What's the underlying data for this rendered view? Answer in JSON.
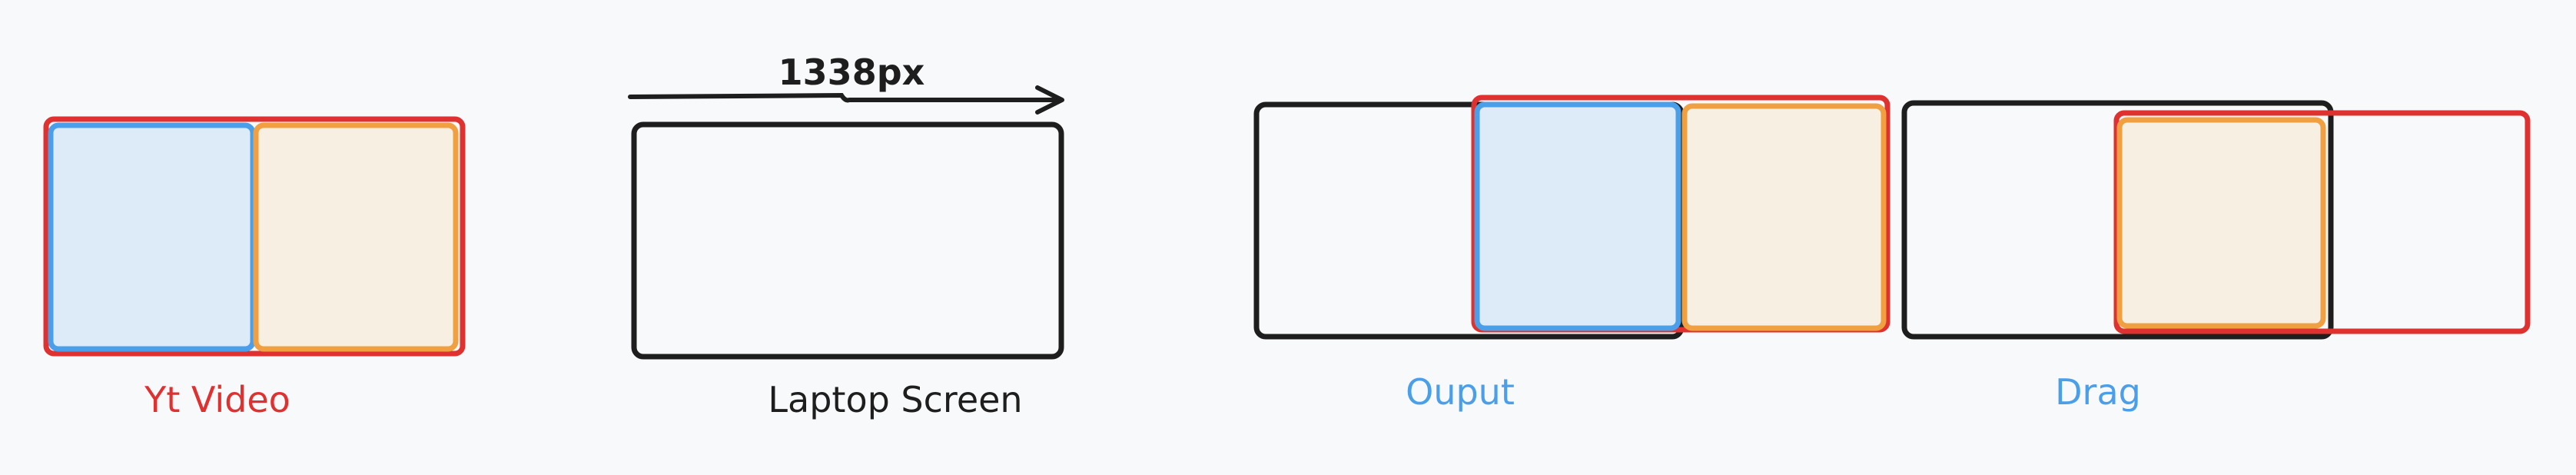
{
  "colors": {
    "background": "#f8f9fa",
    "red": "#e03131",
    "blue": "#4a9fe8",
    "blue_fill": "#ddeaf8",
    "orange": "#f0a040",
    "orange_fill": "#f8efe3",
    "black": "#1e1e1e"
  },
  "labels": {
    "yt_video": "Yt Video",
    "laptop_screen": "Laptop Screen",
    "width_measure": "1338px",
    "output": "Ouput",
    "drag": "Drag"
  }
}
